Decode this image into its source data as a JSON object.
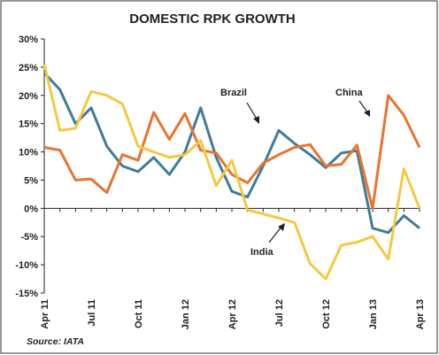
{
  "chart_data": {
    "type": "line",
    "title": "DOMESTIC RPK GROWTH",
    "categories": [
      "Apr 11",
      null,
      null,
      "Jul 11",
      null,
      null,
      "Oct 11",
      null,
      null,
      "Jan 12",
      null,
      null,
      "Apr 12",
      null,
      null,
      "Jul 12",
      null,
      null,
      "Oct 12",
      null,
      null,
      "Jan 13",
      null,
      null,
      "Apr 13"
    ],
    "series": [
      {
        "name": "Brazil",
        "color": "#3f7c9a",
        "values": [
          24,
          21,
          15,
          17.8,
          11,
          7.5,
          6.5,
          9,
          6,
          10,
          17.8,
          9,
          3,
          2,
          7.5,
          13.8,
          11.5,
          9.5,
          7.2,
          9.8,
          10.2,
          -3.5,
          -4.3,
          -1.3,
          -3.5
        ]
      },
      {
        "name": "China",
        "color": "#e8742e",
        "values": [
          10.8,
          10.3,
          5,
          5.2,
          2.8,
          9.5,
          8.5,
          17,
          12.2,
          16.8,
          10.3,
          9.8,
          6,
          4.5,
          8,
          9.5,
          10.8,
          11.3,
          7.5,
          7.8,
          11.2,
          0,
          20,
          16.5,
          10.8
        ]
      },
      {
        "name": "India",
        "color": "#f5c842",
        "values": [
          25.5,
          13.8,
          14.2,
          20.7,
          20,
          18.5,
          11,
          10,
          9,
          9.5,
          12,
          4,
          8.5,
          -0.3,
          -1,
          -1.7,
          -2.5,
          -9.8,
          -12.5,
          -6.5,
          -6,
          -5,
          -9,
          7,
          0
        ]
      }
    ],
    "ylim": [
      -15,
      30
    ],
    "yticks": [
      {
        "value": 30,
        "label": "30%"
      },
      {
        "value": 25,
        "label": "25%"
      },
      {
        "value": 20,
        "label": "20%"
      },
      {
        "value": 15,
        "label": "15%"
      },
      {
        "value": 10,
        "label": "10%"
      },
      {
        "value": 5,
        "label": "5%"
      },
      {
        "value": 0,
        "label": "0%"
      },
      {
        "value": -5,
        "label": "-5%"
      },
      {
        "value": -10,
        "label": "-10%"
      },
      {
        "value": -15,
        "label": "-15%"
      }
    ],
    "source": "Source: IATA"
  }
}
